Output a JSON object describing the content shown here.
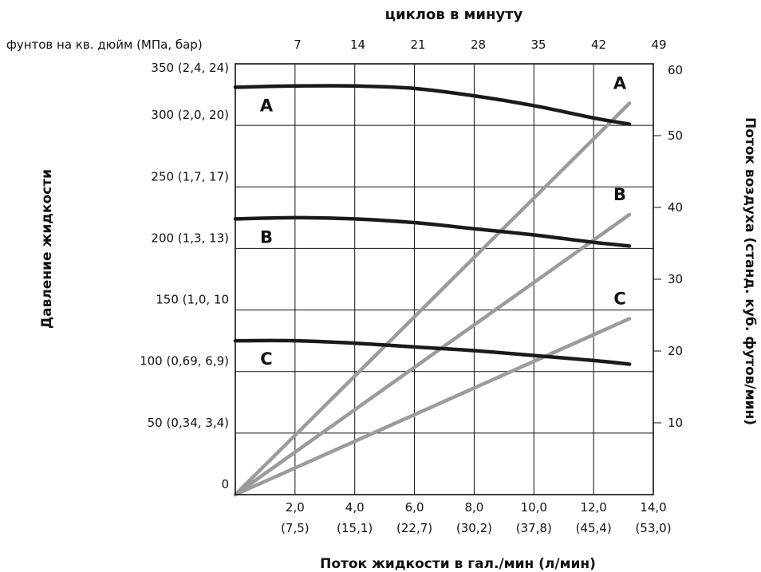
{
  "chart_data": {
    "type": "line",
    "top_axis": {
      "title": "циклов в минуту",
      "ticks": [
        "7",
        "14",
        "21",
        "28",
        "35",
        "42",
        "49"
      ]
    },
    "pressure_unit_label": "фунтов на кв. дюйм (МПа, бар)",
    "left_axis": {
      "title": "Давление жидкости",
      "range": [
        0,
        350
      ],
      "ticks": [
        {
          "value": 0,
          "label": "0"
        },
        {
          "value": 50,
          "label": "50 (0,34, 3,4)"
        },
        {
          "value": 100,
          "label": "100 (0,69, 6,9)"
        },
        {
          "value": 150,
          "label": "150 (1,0, 10"
        },
        {
          "value": 200,
          "label": "200 (1,3, 13)"
        },
        {
          "value": 250,
          "label": "250 (1,7, 17)"
        },
        {
          "value": 300,
          "label": "300 (2,0, 20)"
        },
        {
          "value": 350,
          "label": "350 (2,4, 24)"
        }
      ]
    },
    "right_axis": {
      "title": "Поток воздуха (станд. куб. футов/мин)",
      "range": [
        0,
        60
      ],
      "ticks": [
        "10",
        "20",
        "30",
        "40",
        "50",
        "60"
      ]
    },
    "bottom_axis": {
      "title": "Поток жидкости в гал./мин (л/мин)",
      "range": [
        0,
        14
      ],
      "ticks": [
        {
          "value": 2,
          "gpm": "2,0",
          "lpm": "(7,5)"
        },
        {
          "value": 4,
          "gpm": "4,0",
          "lpm": "(15,1)"
        },
        {
          "value": 6,
          "gpm": "6,0",
          "lpm": "(22,7)"
        },
        {
          "value": 8,
          "gpm": "8,0",
          "lpm": "(30,2)"
        },
        {
          "value": 10,
          "gpm": "10,0",
          "lpm": "(37,8)"
        },
        {
          "value": 12,
          "gpm": "12,0",
          "lpm": "(45,4)"
        },
        {
          "value": 14,
          "gpm": "14,0",
          "lpm": "(53,0)"
        }
      ]
    },
    "fluid_pressure_series": [
      {
        "name": "A",
        "color": "#1a1a1a",
        "x": [
          0,
          2,
          4,
          6,
          8,
          10,
          12,
          13.2
        ],
        "y": [
          331,
          332,
          332,
          330,
          324,
          316,
          306,
          301
        ]
      },
      {
        "name": "B",
        "color": "#1a1a1a",
        "x": [
          0,
          2,
          4,
          6,
          8,
          10,
          12,
          13.2
        ],
        "y": [
          224,
          225,
          224,
          221,
          216,
          211,
          205,
          202
        ]
      },
      {
        "name": "C",
        "color": "#1a1a1a",
        "x": [
          0,
          2,
          4,
          6,
          8,
          10,
          12,
          13.2
        ],
        "y": [
          125,
          125,
          123,
          120,
          117,
          113,
          109,
          106
        ]
      }
    ],
    "air_flow_series": [
      {
        "name": "A",
        "color": "#9b9b9b",
        "x": [
          0,
          13.2
        ],
        "y": [
          0,
          54.5
        ]
      },
      {
        "name": "B",
        "color": "#9b9b9b",
        "x": [
          0,
          13.2
        ],
        "y": [
          0,
          39
        ]
      },
      {
        "name": "C",
        "color": "#9b9b9b",
        "x": [
          0,
          13.2
        ],
        "y": [
          0,
          24.5
        ]
      }
    ]
  }
}
